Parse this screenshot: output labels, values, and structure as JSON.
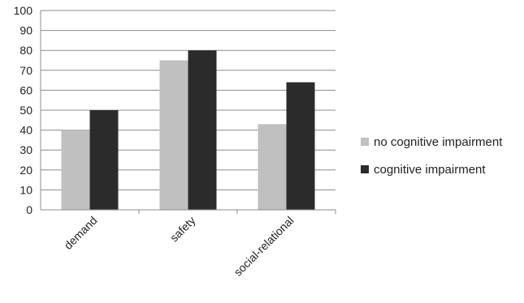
{
  "chart_data": {
    "type": "bar",
    "categories": [
      "demand",
      "safety",
      "social-relational"
    ],
    "series": [
      {
        "name": "no cognitive impairment",
        "values": [
          40,
          75,
          43
        ],
        "color": "#c0c0c0"
      },
      {
        "name": "cognitive impairment",
        "values": [
          50,
          80,
          64
        ],
        "color": "#2b2b2b"
      }
    ],
    "ylim": [
      0,
      100
    ],
    "yticks": [
      0,
      10,
      20,
      30,
      40,
      50,
      60,
      70,
      80,
      90,
      100
    ],
    "grid": true,
    "legend_position": "right"
  }
}
